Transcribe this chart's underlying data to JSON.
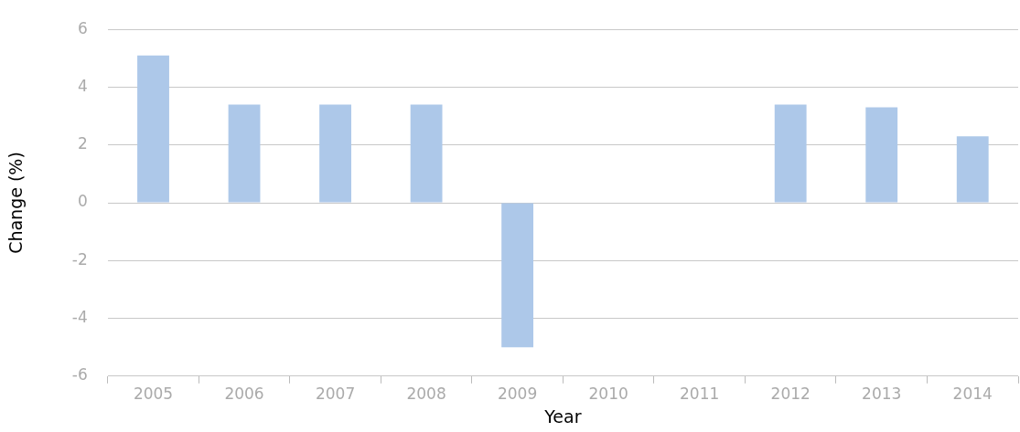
{
  "chart_data": {
    "type": "bar",
    "xlabel": "Year",
    "ylabel": "Change (%)",
    "categories": [
      "2005",
      "2006",
      "2007",
      "2008",
      "2009",
      "2010",
      "2011",
      "2012",
      "2013",
      "2014"
    ],
    "values": [
      5.1,
      3.4,
      3.4,
      3.4,
      -5.0,
      0,
      0,
      3.4,
      3.3,
      2.3
    ],
    "color": "#adc8e9",
    "ylim": [
      -6,
      6
    ],
    "yticks": [
      -6,
      -4,
      -2,
      0,
      2,
      4,
      6
    ],
    "grid": "y",
    "legend": false
  }
}
